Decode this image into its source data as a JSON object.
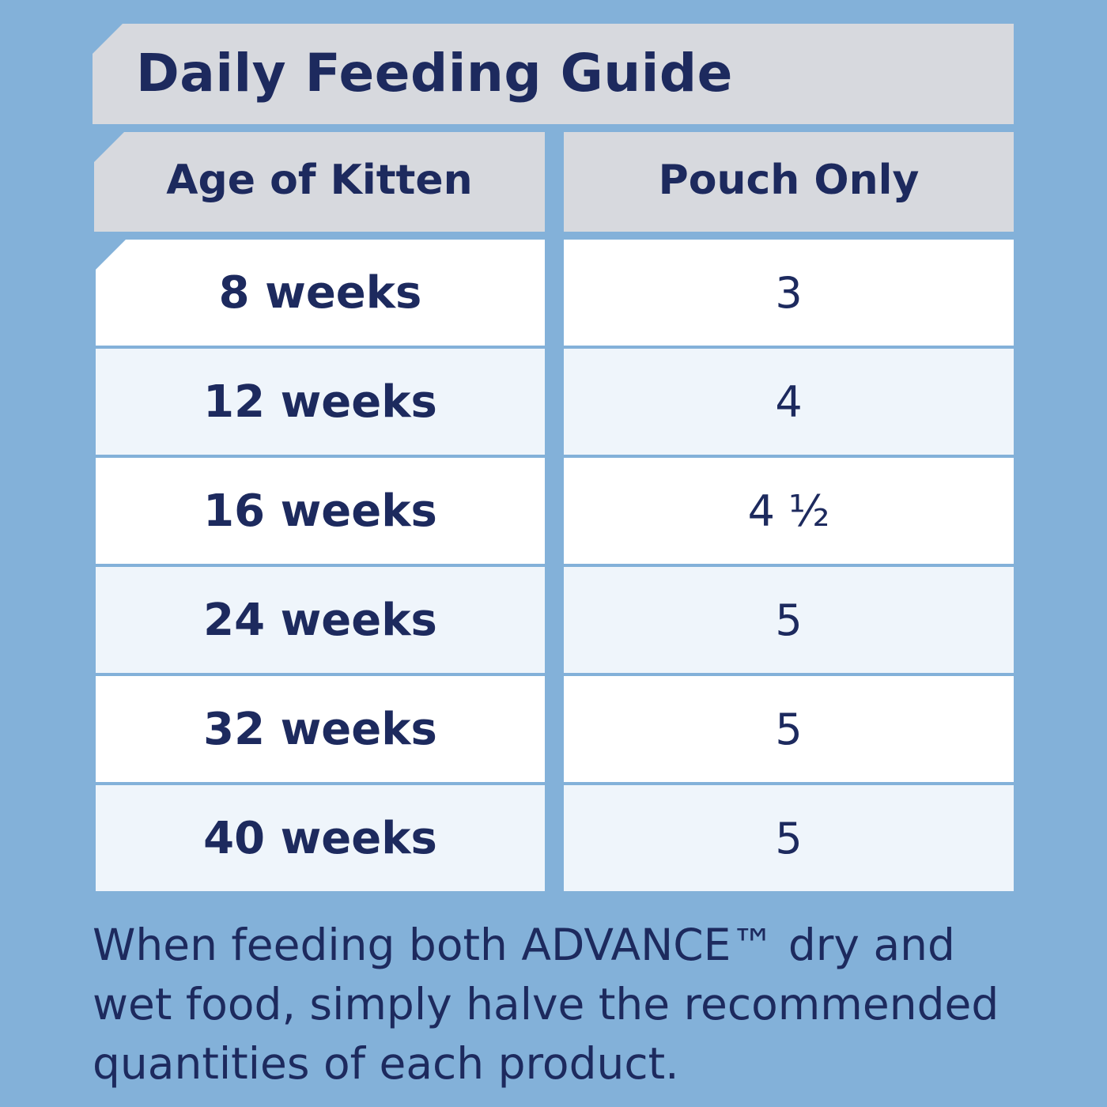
{
  "title": "Daily Feeding Guide",
  "table": {
    "headers": {
      "age": "Age of Kitten",
      "pouch": "Pouch Only"
    },
    "rows": [
      {
        "age": "8 weeks",
        "pouch": "3"
      },
      {
        "age": "12 weeks",
        "pouch": "4"
      },
      {
        "age": "16 weeks",
        "pouch": "4 ½"
      },
      {
        "age": "24 weeks",
        "pouch": "5"
      },
      {
        "age": "32 weeks",
        "pouch": "5"
      },
      {
        "age": "40 weeks",
        "pouch": "5"
      }
    ]
  },
  "footnote": "When feeding both ADVANCE™ dry and wet food, simply halve the recommended quantities of each product.",
  "colors": {
    "background": "#83b1d9",
    "header_fill": "#d7d9de",
    "text": "#1d2a5e",
    "row_white": "#ffffff",
    "row_tint": "#eff5fb"
  }
}
